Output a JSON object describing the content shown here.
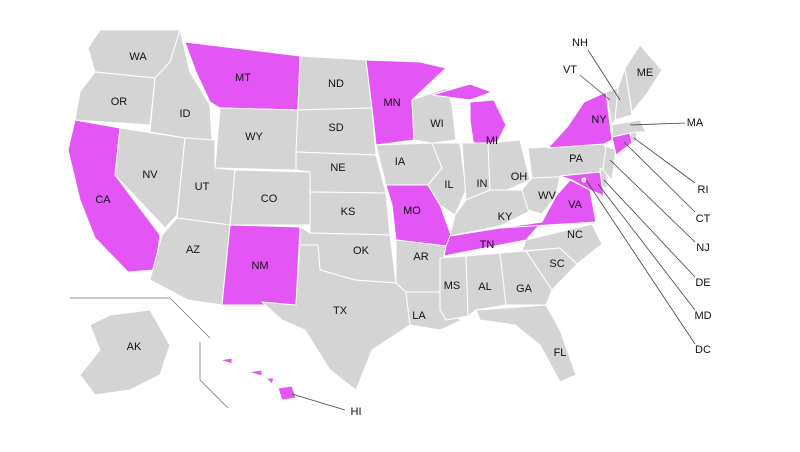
{
  "colors": {
    "highlighted": "#e455f5",
    "default": "#d4d4d4",
    "border": "#ffffff"
  },
  "states": [
    {
      "code": "WA",
      "highlighted": false
    },
    {
      "code": "OR",
      "highlighted": false
    },
    {
      "code": "CA",
      "highlighted": true
    },
    {
      "code": "ID",
      "highlighted": false
    },
    {
      "code": "NV",
      "highlighted": false
    },
    {
      "code": "MT",
      "highlighted": true
    },
    {
      "code": "WY",
      "highlighted": false
    },
    {
      "code": "UT",
      "highlighted": false
    },
    {
      "code": "CO",
      "highlighted": false
    },
    {
      "code": "AZ",
      "highlighted": false
    },
    {
      "code": "NM",
      "highlighted": true
    },
    {
      "code": "ND",
      "highlighted": false
    },
    {
      "code": "SD",
      "highlighted": false
    },
    {
      "code": "NE",
      "highlighted": false
    },
    {
      "code": "KS",
      "highlighted": false
    },
    {
      "code": "OK",
      "highlighted": false
    },
    {
      "code": "TX",
      "highlighted": false
    },
    {
      "code": "MN",
      "highlighted": true
    },
    {
      "code": "IA",
      "highlighted": false
    },
    {
      "code": "MO",
      "highlighted": true
    },
    {
      "code": "AR",
      "highlighted": false
    },
    {
      "code": "LA",
      "highlighted": false
    },
    {
      "code": "WI",
      "highlighted": false
    },
    {
      "code": "IL",
      "highlighted": false
    },
    {
      "code": "MI",
      "highlighted": true
    },
    {
      "code": "IN",
      "highlighted": false
    },
    {
      "code": "OH",
      "highlighted": false
    },
    {
      "code": "KY",
      "highlighted": false
    },
    {
      "code": "TN",
      "highlighted": true
    },
    {
      "code": "MS",
      "highlighted": false
    },
    {
      "code": "AL",
      "highlighted": false
    },
    {
      "code": "GA",
      "highlighted": false
    },
    {
      "code": "FL",
      "highlighted": false
    },
    {
      "code": "SC",
      "highlighted": false
    },
    {
      "code": "NC",
      "highlighted": false
    },
    {
      "code": "VA",
      "highlighted": true
    },
    {
      "code": "WV",
      "highlighted": false
    },
    {
      "code": "PA",
      "highlighted": false
    },
    {
      "code": "NY",
      "highlighted": true
    },
    {
      "code": "MD",
      "highlighted": true
    },
    {
      "code": "DE",
      "highlighted": false
    },
    {
      "code": "NJ",
      "highlighted": false
    },
    {
      "code": "CT",
      "highlighted": true
    },
    {
      "code": "RI",
      "highlighted": false
    },
    {
      "code": "MA",
      "highlighted": false
    },
    {
      "code": "VT",
      "highlighted": false
    },
    {
      "code": "NH",
      "highlighted": false
    },
    {
      "code": "ME",
      "highlighted": false
    },
    {
      "code": "DC",
      "highlighted": false
    },
    {
      "code": "AK",
      "highlighted": false
    },
    {
      "code": "HI",
      "highlighted": true
    }
  ]
}
